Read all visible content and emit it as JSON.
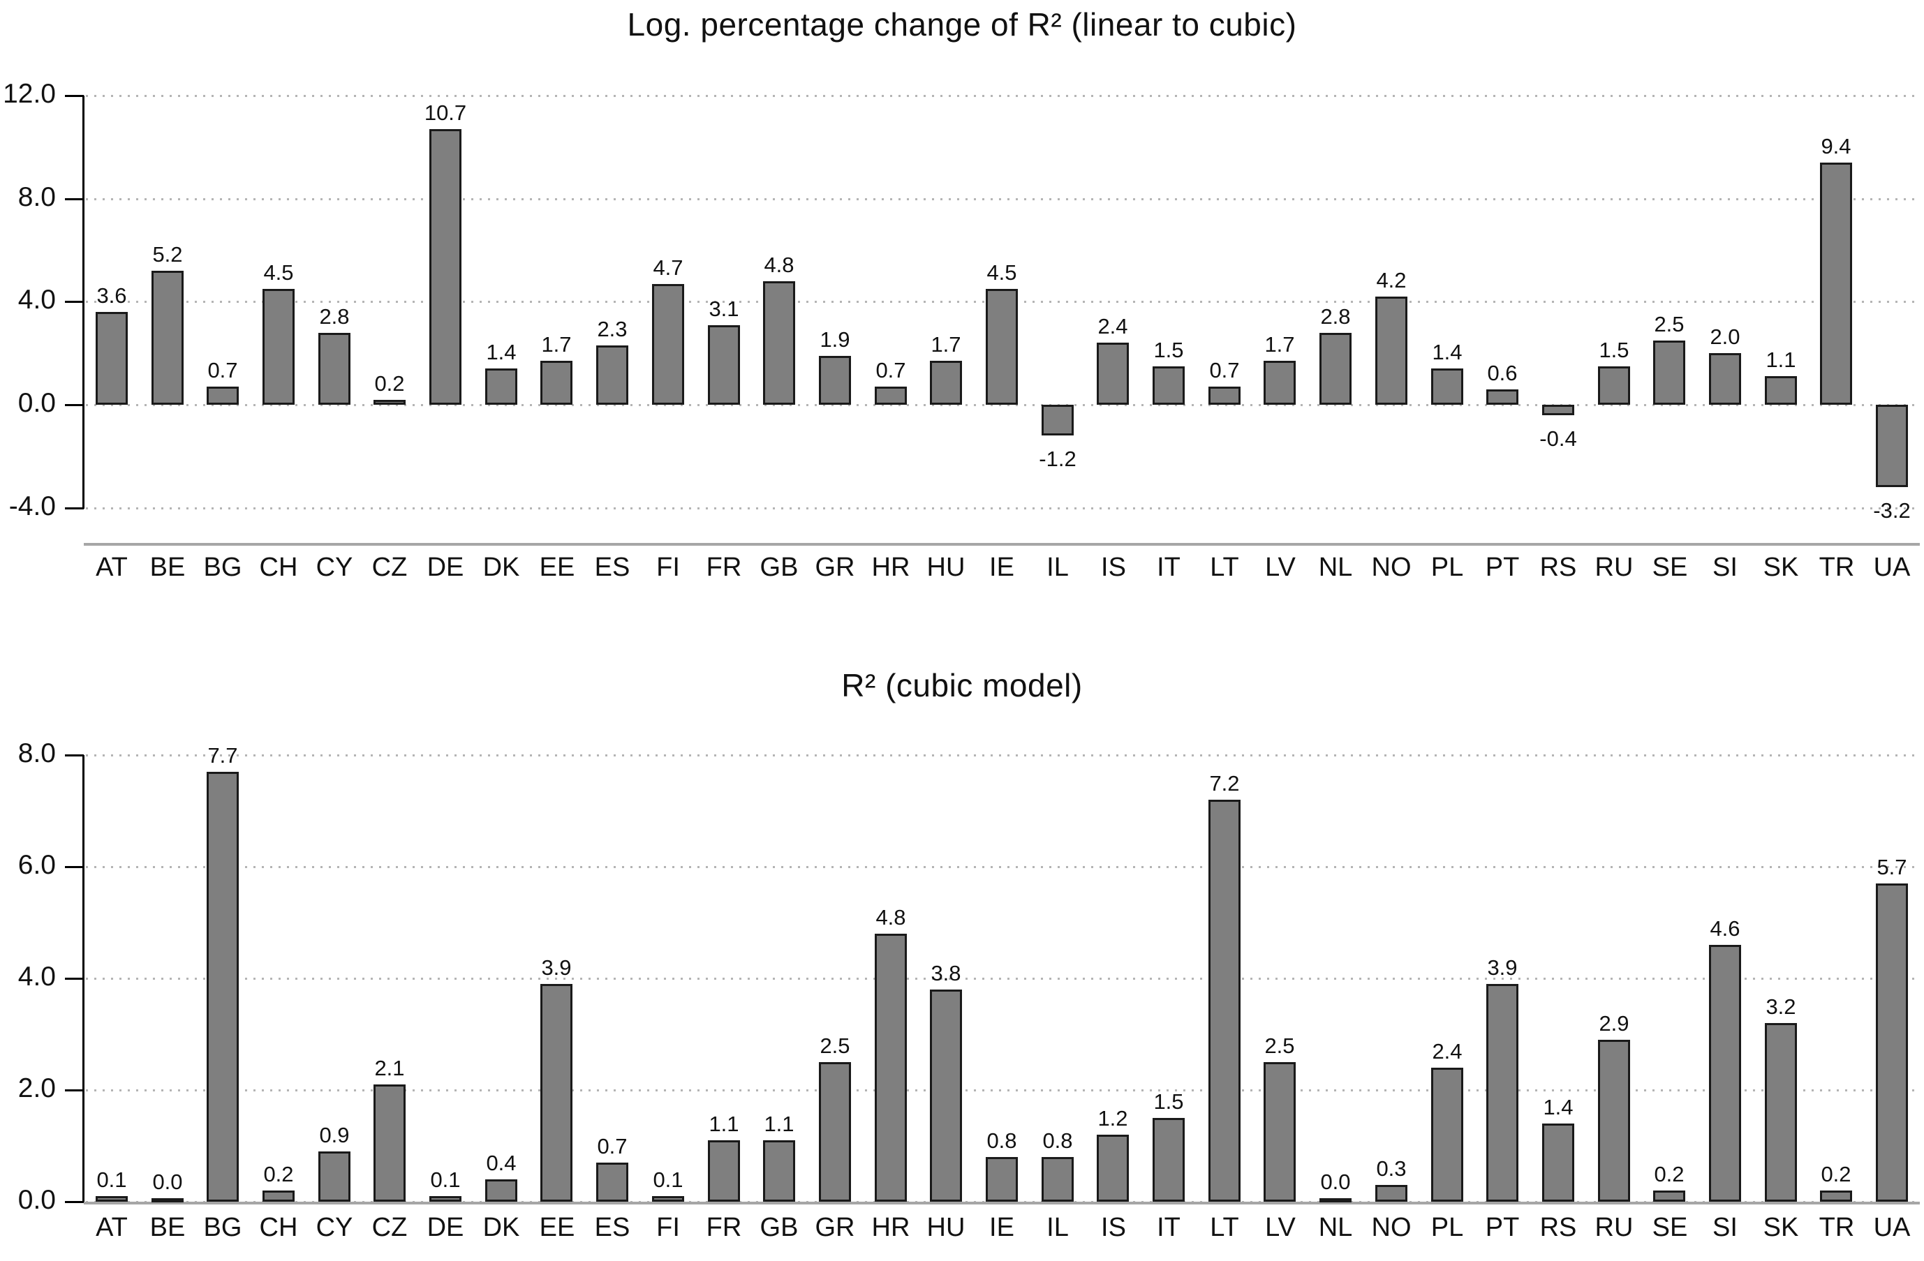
{
  "style": {
    "bar_fill": "#7f7f7f",
    "bar_border": "#1a1a1a",
    "gridline": "#b4b4b4",
    "axis": "#000000",
    "baseline": "#a6a6a6",
    "text": "#111111",
    "background": "#ffffff"
  },
  "chart_data": [
    {
      "type": "bar",
      "title": "Log. percentage change of R² (linear to cubic)",
      "xlabel": "",
      "ylabel": "",
      "categories": [
        "AT",
        "BE",
        "BG",
        "CH",
        "CY",
        "CZ",
        "DE",
        "DK",
        "EE",
        "ES",
        "FI",
        "FR",
        "GB",
        "GR",
        "HR",
        "HU",
        "IE",
        "IL",
        "IS",
        "IT",
        "LT",
        "LV",
        "NL",
        "NO",
        "PL",
        "PT",
        "RS",
        "RU",
        "SE",
        "SI",
        "SK",
        "TR",
        "UA"
      ],
      "values": [
        3.6,
        5.2,
        0.7,
        4.5,
        2.8,
        0.2,
        10.7,
        1.4,
        1.7,
        2.3,
        4.7,
        3.1,
        4.8,
        1.9,
        0.7,
        1.7,
        4.5,
        -1.2,
        2.4,
        1.5,
        0.7,
        1.7,
        2.8,
        4.2,
        1.4,
        0.6,
        -0.4,
        1.5,
        2.5,
        2.0,
        1.1,
        9.4,
        -3.2
      ],
      "yticks": [
        12.0,
        8.0,
        4.0,
        0.0,
        -4.0
      ],
      "ylim": [
        -4.0,
        12.0
      ],
      "grid": "horizontal-dotted",
      "legend": "none",
      "value_labels": "shown-above-bars"
    },
    {
      "type": "bar",
      "title": "R² (cubic model)",
      "xlabel": "",
      "ylabel": "",
      "categories": [
        "AT",
        "BE",
        "BG",
        "CH",
        "CY",
        "CZ",
        "DE",
        "DK",
        "EE",
        "ES",
        "FI",
        "FR",
        "GB",
        "GR",
        "HR",
        "HU",
        "IE",
        "IL",
        "IS",
        "IT",
        "LT",
        "LV",
        "NL",
        "NO",
        "PL",
        "PT",
        "RS",
        "RU",
        "SE",
        "SI",
        "SK",
        "TR",
        "UA"
      ],
      "values": [
        0.1,
        0.0,
        7.7,
        0.2,
        0.9,
        2.1,
        0.1,
        0.4,
        3.9,
        0.7,
        0.1,
        1.1,
        1.1,
        2.5,
        4.8,
        3.8,
        0.8,
        0.8,
        1.2,
        1.5,
        7.2,
        2.5,
        0.0,
        0.3,
        2.4,
        3.9,
        1.4,
        2.9,
        0.2,
        4.6,
        3.2,
        0.2,
        5.7
      ],
      "yticks": [
        8.0,
        6.0,
        4.0,
        2.0,
        0.0
      ],
      "ylim": [
        0.0,
        8.0
      ],
      "grid": "horizontal-dotted",
      "legend": "none",
      "value_labels": "shown-above-bars"
    }
  ]
}
